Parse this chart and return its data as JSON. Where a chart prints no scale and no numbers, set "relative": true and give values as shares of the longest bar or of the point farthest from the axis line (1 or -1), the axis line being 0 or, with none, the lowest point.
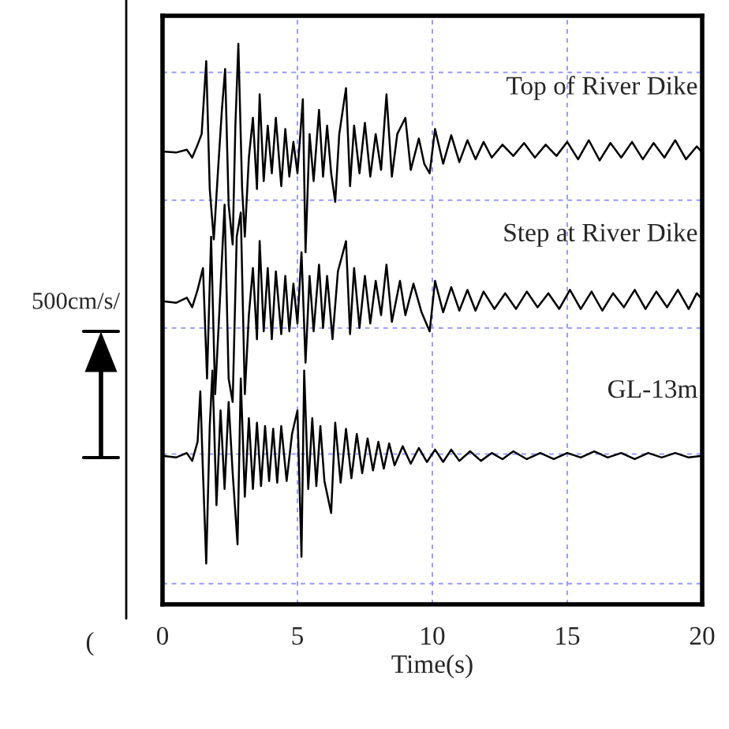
{
  "chart_data": {
    "type": "line",
    "relative": true,
    "xlabel": "Time(s)",
    "xlim": [
      0,
      20
    ],
    "xticks": [
      0,
      5,
      10,
      15,
      20
    ],
    "grid": "x",
    "legend": false,
    "marker": "none",
    "line_style": "solid",
    "annotations": [
      "500cm/s/",
      "("
    ],
    "ref_lines": [
      {
        "axis": "y",
        "value": 0.949,
        "color": "#9999ff",
        "line_style": "dashed"
      },
      {
        "axis": "y",
        "value": 0.721,
        "color": "#9999ff",
        "line_style": "dashed"
      },
      {
        "axis": "y",
        "value": 0.493,
        "color": "#9999ff",
        "line_style": "dashed"
      },
      {
        "axis": "y",
        "value": 0.268,
        "color": "#9999ff",
        "line_style": "dashed"
      },
      {
        "axis": "y",
        "value": 0.037,
        "color": "#9999ff",
        "line_style": "dashed"
      }
    ],
    "series": [
      {
        "name": "Top of River Dike",
        "color": "#000000",
        "x": [
          0,
          0.5,
          0.9,
          1.1,
          1.3,
          1.45,
          1.62,
          1.75,
          1.9,
          2.05,
          2.2,
          2.32,
          2.45,
          2.6,
          2.7,
          2.81,
          2.95,
          3.05,
          3.2,
          3.35,
          3.5,
          3.6,
          3.75,
          3.9,
          4.05,
          4.2,
          4.4,
          4.55,
          4.7,
          4.85,
          5.0,
          5.2,
          5.3,
          5.45,
          5.6,
          5.8,
          5.95,
          6.1,
          6.25,
          6.4,
          6.55,
          6.8,
          6.95,
          7.1,
          7.3,
          7.5,
          7.7,
          7.9,
          8.1,
          8.3,
          8.5,
          8.7,
          9.0,
          9.2,
          9.5,
          9.7,
          9.9,
          10.1,
          10.4,
          10.7,
          11.0,
          11.3,
          11.6,
          11.9,
          12.2,
          12.6,
          13.0,
          13.4,
          13.8,
          14.2,
          14.6,
          15.0,
          15.4,
          15.8,
          16.2,
          16.6,
          17.0,
          17.4,
          17.8,
          18.2,
          18.6,
          19.0,
          19.4,
          19.8,
          20
        ],
        "values": [
          0.808,
          0.806,
          0.811,
          0.797,
          0.82,
          0.839,
          0.969,
          0.741,
          0.651,
          0.769,
          0.882,
          0.955,
          0.713,
          0.642,
          0.854,
          1.0,
          0.741,
          0.656,
          0.797,
          0.868,
          0.741,
          0.91,
          0.755,
          0.854,
          0.769,
          0.868,
          0.746,
          0.848,
          0.763,
          0.825,
          0.769,
          0.901,
          0.628,
          0.839,
          0.755,
          0.882,
          0.763,
          0.854,
          0.769,
          0.718,
          0.839,
          0.921,
          0.746,
          0.854,
          0.769,
          0.859,
          0.763,
          0.839,
          0.775,
          0.91,
          0.763,
          0.839,
          0.868,
          0.775,
          0.831,
          0.786,
          0.769,
          0.848,
          0.786,
          0.837,
          0.789,
          0.828,
          0.794,
          0.825,
          0.797,
          0.82,
          0.8,
          0.823,
          0.797,
          0.82,
          0.8,
          0.825,
          0.794,
          0.828,
          0.792,
          0.823,
          0.797,
          0.825,
          0.794,
          0.823,
          0.797,
          0.828,
          0.794,
          0.817,
          0.806
        ]
      },
      {
        "name": "Step at River Dike",
        "color": "#000000",
        "x": [
          0,
          0.5,
          0.9,
          1.1,
          1.3,
          1.5,
          1.65,
          1.8,
          1.95,
          2.1,
          2.3,
          2.45,
          2.6,
          2.75,
          2.9,
          3.05,
          3.2,
          3.35,
          3.5,
          3.6,
          3.75,
          3.9,
          4.05,
          4.2,
          4.4,
          4.55,
          4.7,
          4.85,
          5.0,
          5.15,
          5.3,
          5.45,
          5.6,
          5.8,
          5.95,
          6.1,
          6.3,
          6.5,
          6.8,
          6.95,
          7.1,
          7.3,
          7.5,
          7.7,
          7.9,
          8.1,
          8.3,
          8.5,
          8.8,
          9.0,
          9.3,
          9.6,
          9.9,
          10.1,
          10.4,
          10.7,
          11.0,
          11.3,
          11.6,
          11.9,
          12.3,
          12.7,
          13.1,
          13.5,
          13.9,
          14.3,
          14.7,
          15.1,
          15.5,
          15.9,
          16.3,
          16.7,
          17.1,
          17.5,
          17.9,
          18.3,
          18.7,
          19.1,
          19.5,
          19.8,
          20
        ],
        "values": [
          0.541,
          0.538,
          0.547,
          0.53,
          0.561,
          0.6,
          0.403,
          0.656,
          0.375,
          0.516,
          0.713,
          0.403,
          0.361,
          0.656,
          0.699,
          0.375,
          0.516,
          0.6,
          0.473,
          0.648,
          0.487,
          0.6,
          0.473,
          0.594,
          0.482,
          0.586,
          0.487,
          0.572,
          0.501,
          0.628,
          0.431,
          0.586,
          0.487,
          0.606,
          0.493,
          0.586,
          0.473,
          0.594,
          0.648,
          0.482,
          0.6,
          0.493,
          0.586,
          0.501,
          0.577,
          0.516,
          0.606,
          0.504,
          0.577,
          0.516,
          0.572,
          0.521,
          0.487,
          0.577,
          0.521,
          0.566,
          0.524,
          0.561,
          0.524,
          0.558,
          0.527,
          0.555,
          0.527,
          0.558,
          0.53,
          0.555,
          0.527,
          0.561,
          0.527,
          0.558,
          0.524,
          0.555,
          0.53,
          0.561,
          0.527,
          0.558,
          0.53,
          0.561,
          0.527,
          0.555,
          0.544
        ]
      },
      {
        "name": "GL-13m",
        "color": "#000000",
        "x": [
          0,
          0.5,
          0.9,
          1.1,
          1.3,
          1.4,
          1.5,
          1.62,
          1.75,
          1.85,
          2.0,
          2.15,
          2.3,
          2.45,
          2.6,
          2.78,
          2.9,
          3.05,
          3.2,
          3.35,
          3.5,
          3.65,
          3.8,
          3.95,
          4.1,
          4.25,
          4.4,
          4.6,
          4.8,
          5.0,
          5.15,
          5.25,
          5.4,
          5.55,
          5.7,
          5.85,
          6.0,
          6.25,
          6.4,
          6.6,
          6.8,
          7.0,
          7.2,
          7.4,
          7.6,
          7.8,
          8.0,
          8.2,
          8.4,
          8.6,
          8.9,
          9.2,
          9.5,
          9.8,
          10.1,
          10.4,
          10.7,
          11.0,
          11.4,
          11.8,
          12.2,
          12.6,
          13.0,
          13.5,
          14.0,
          14.5,
          15.0,
          15.5,
          16.0,
          16.5,
          17.0,
          17.5,
          18.0,
          18.5,
          19.0,
          19.5,
          20
        ],
        "values": [
          0.265,
          0.262,
          0.27,
          0.256,
          0.29,
          0.38,
          0.234,
          0.073,
          0.318,
          0.417,
          0.177,
          0.346,
          0.206,
          0.361,
          0.234,
          0.107,
          0.403,
          0.192,
          0.332,
          0.206,
          0.324,
          0.211,
          0.318,
          0.22,
          0.313,
          0.217,
          0.318,
          0.22,
          0.304,
          0.346,
          0.085,
          0.417,
          0.206,
          0.332,
          0.211,
          0.318,
          0.22,
          0.163,
          0.324,
          0.217,
          0.313,
          0.225,
          0.304,
          0.234,
          0.296,
          0.239,
          0.29,
          0.242,
          0.287,
          0.248,
          0.282,
          0.251,
          0.279,
          0.254,
          0.276,
          0.254,
          0.276,
          0.256,
          0.273,
          0.256,
          0.27,
          0.259,
          0.273,
          0.259,
          0.27,
          0.259,
          0.27,
          0.262,
          0.273,
          0.262,
          0.27,
          0.259,
          0.27,
          0.262,
          0.27,
          0.262,
          0.265
        ]
      }
    ]
  }
}
